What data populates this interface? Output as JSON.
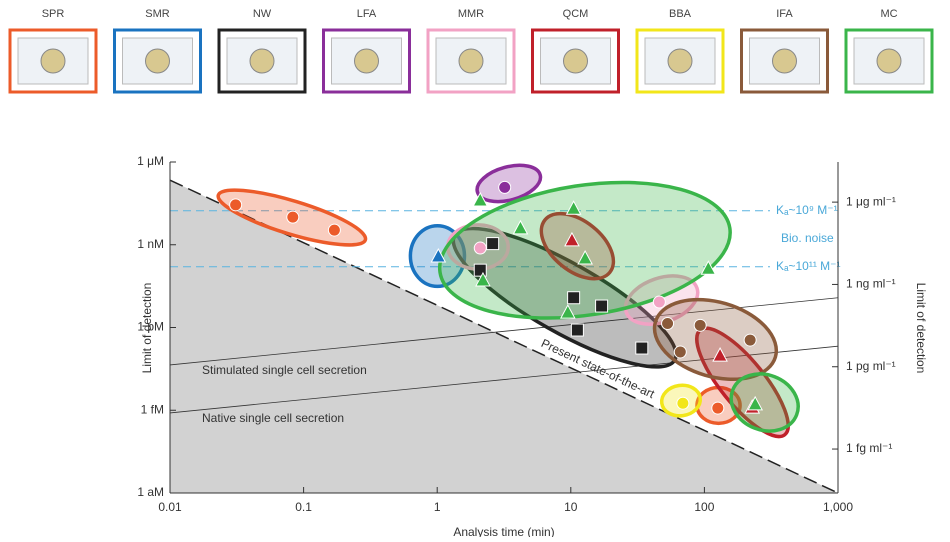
{
  "chart_data": {
    "type": "scatter",
    "x_label": "Analysis time (min)",
    "y_label": "Limit of detection",
    "y2_label": "Limit of detection",
    "log_x": true,
    "log_y": true,
    "xlim": [
      0.01,
      1000
    ],
    "ylim": [
      1e-18,
      1e-06
    ],
    "y2lim": [
      2.5e-17,
      2.9e-05
    ],
    "xticks": [
      0.01,
      0.1,
      1,
      10,
      100,
      {
        "value": 1000,
        "label": "1,000"
      }
    ],
    "yticks": [
      {
        "value": 1e-18,
        "label": "1 aM"
      },
      {
        "value": 1e-15,
        "label": "1 fM"
      },
      {
        "value": 1e-12,
        "label": "1 pM"
      },
      {
        "value": 1e-09,
        "label": "1 nM"
      },
      {
        "value": 1e-06,
        "label": "1 μM"
      }
    ],
    "y2ticks": [
      {
        "value": 1e-15,
        "label": "1 fg ml⁻¹"
      },
      {
        "value": 1e-12,
        "label": "1 pg ml⁻¹"
      },
      {
        "value": 1e-09,
        "label": "1 ng ml⁻¹"
      },
      {
        "value": 1e-06,
        "label": "1 μg ml⁻¹"
      }
    ],
    "state_of_the_art": {
      "label": "Present state-of-the-art",
      "x": [
        0.01,
        1000
      ],
      "y": [
        2.2e-07,
        1e-18
      ]
    },
    "secretion_lines": [
      {
        "label": "Stimulated single cell secretion",
        "x": [
          0.01,
          1000
        ],
        "y": [
          4.4e-14,
          1.2e-11
        ]
      },
      {
        "label": "Native single cell secretion",
        "x": [
          0.01,
          1000
        ],
        "y": [
          8e-16,
          2.1e-13
        ]
      }
    ],
    "reference_lines": [
      {
        "label": "Kₐ~10⁹ M⁻¹",
        "y": 1.7e-08
      },
      {
        "label": "Kₐ~10¹¹ M⁻¹",
        "y": 1.6e-10
      }
    ],
    "reference_note": "Bio. noise",
    "techniques": [
      {
        "label": "SPR",
        "color": "#ec5b2a",
        "regions": [
          {
            "x": [
              0.023,
              0.29
            ],
            "y": [
              6.3e-08,
              1.5e-09
            ],
            "width": 1.2
          },
          {
            "x": [
              88,
              185
            ],
            "y": [
              1.5e-15,
              1.5e-15
            ],
            "width": 1.3
          }
        ],
        "points": [
          {
            "x": 0.031,
            "y": 2.8e-08,
            "marker": "circle"
          },
          {
            "x": 0.083,
            "y": 1e-08,
            "marker": "circle"
          },
          {
            "x": 0.17,
            "y": 3.4e-09,
            "marker": "circle"
          },
          {
            "x": 126,
            "y": 1.2e-15,
            "marker": "circle"
          }
        ]
      },
      {
        "label": "SMR",
        "color": "#1a73c0",
        "regions": [
          {
            "x": [
              0.63,
              1.6
            ],
            "y": [
              3.9e-10,
              3.9e-10
            ],
            "width": 2.2
          }
        ],
        "points": [
          {
            "x": 1.02,
            "y": 3.9e-10,
            "marker": "triangle"
          }
        ]
      },
      {
        "label": "NW",
        "color": "#222222",
        "regions": [
          {
            "x": [
              1.35,
              60
            ],
            "y": [
              2.2e-09,
              6.6e-14
            ],
            "width": 2.5
          }
        ],
        "points": [
          {
            "x": 2.1,
            "y": 1.2e-10,
            "marker": "square"
          },
          {
            "x": 2.6,
            "y": 1.1e-09,
            "marker": "square"
          },
          {
            "x": 10.5,
            "y": 1.2e-11,
            "marker": "square"
          },
          {
            "x": 17,
            "y": 6e-12,
            "marker": "square"
          },
          {
            "x": 11.2,
            "y": 8.1e-13,
            "marker": "square"
          },
          {
            "x": 34,
            "y": 1.8e-13,
            "marker": "square"
          }
        ]
      },
      {
        "label": "LFA",
        "color": "#8a2e9a",
        "regions": [
          {
            "x": [
              2.0,
              5.9
            ],
            "y": [
              8.2e-08,
              3.4e-07
            ],
            "width": 1.2
          }
        ],
        "points": [
          {
            "x": 3.2,
            "y": 1.2e-07,
            "marker": "circle"
          }
        ]
      },
      {
        "label": "MMR",
        "color": "#f2a2c4",
        "regions": [
          {
            "x": [
              1.2,
              3.4
            ],
            "y": [
              8.3e-10,
              8.3e-10
            ],
            "width": 1.6
          },
          {
            "x": [
              26,
              88
            ],
            "y": [
              3.6e-12,
              2.7e-11
            ],
            "width": 1.6
          }
        ],
        "points": [
          {
            "x": 2.1,
            "y": 7.6e-10,
            "marker": "circle"
          },
          {
            "x": 46,
            "y": 8.4e-12,
            "marker": "circle"
          }
        ]
      },
      {
        "label": "QCM",
        "color": "#c0202a",
        "regions": [
          {
            "x": [
              6.4,
              19.6
            ],
            "y": [
              7.9e-09,
              1e-10
            ],
            "width": 1.8
          },
          {
            "x": [
              93,
              400
            ],
            "y": [
              8.1e-13,
              1.3e-16
            ],
            "width": 1.6
          }
        ],
        "points": [
          {
            "x": 10.2,
            "y": 1.5e-09,
            "marker": "triangle"
          },
          {
            "x": 131,
            "y": 1e-13,
            "marker": "triangle"
          },
          {
            "x": 228,
            "y": 1.3e-15,
            "marker": "triangle"
          }
        ]
      },
      {
        "label": "BBA",
        "color": "#f2e61a",
        "regions": [
          {
            "x": [
              48,
              93
            ],
            "y": [
              1.8e-15,
              2.8e-15
            ],
            "width": 1.1
          }
        ],
        "points": [
          {
            "x": 69,
            "y": 1.8e-15,
            "marker": "circle"
          }
        ]
      },
      {
        "label": "IFA",
        "color": "#8a5a3a",
        "regions": [
          {
            "x": [
              43,
              340
            ],
            "y": [
              1.6e-12,
              8.5e-14
            ],
            "width": 2.7
          }
        ],
        "points": [
          {
            "x": 53,
            "y": 1.4e-12,
            "marker": "circle"
          },
          {
            "x": 66,
            "y": 1.3e-13,
            "marker": "circle"
          },
          {
            "x": 93,
            "y": 1.2e-12,
            "marker": "circle"
          },
          {
            "x": 220,
            "y": 3.5e-13,
            "marker": "circle"
          }
        ]
      },
      {
        "label": "MC",
        "color": "#3ab54a",
        "regions": [
          {
            "x": [
              1.05,
              155
            ],
            "y": [
              1e-10,
              4e-09
            ],
            "width": 4.7
          },
          {
            "x": [
              163,
              490
            ],
            "y": [
              5.4e-15,
              6.8e-16
            ],
            "width": 2.0
          }
        ],
        "points": [
          {
            "x": 2.1,
            "y": 4.2e-08,
            "marker": "triangle"
          },
          {
            "x": 10.5,
            "y": 2.1e-08,
            "marker": "triangle"
          },
          {
            "x": 4.2,
            "y": 4.1e-09,
            "marker": "triangle"
          },
          {
            "x": 12.8,
            "y": 3.3e-10,
            "marker": "triangle"
          },
          {
            "x": 2.2,
            "y": 5.3e-11,
            "marker": "triangle"
          },
          {
            "x": 9.5,
            "y": 3.6e-12,
            "marker": "triangle"
          },
          {
            "x": 107,
            "y": 1.4e-10,
            "marker": "triangle"
          },
          {
            "x": 240,
            "y": 1.7e-15,
            "marker": "triangle"
          }
        ]
      }
    ]
  }
}
